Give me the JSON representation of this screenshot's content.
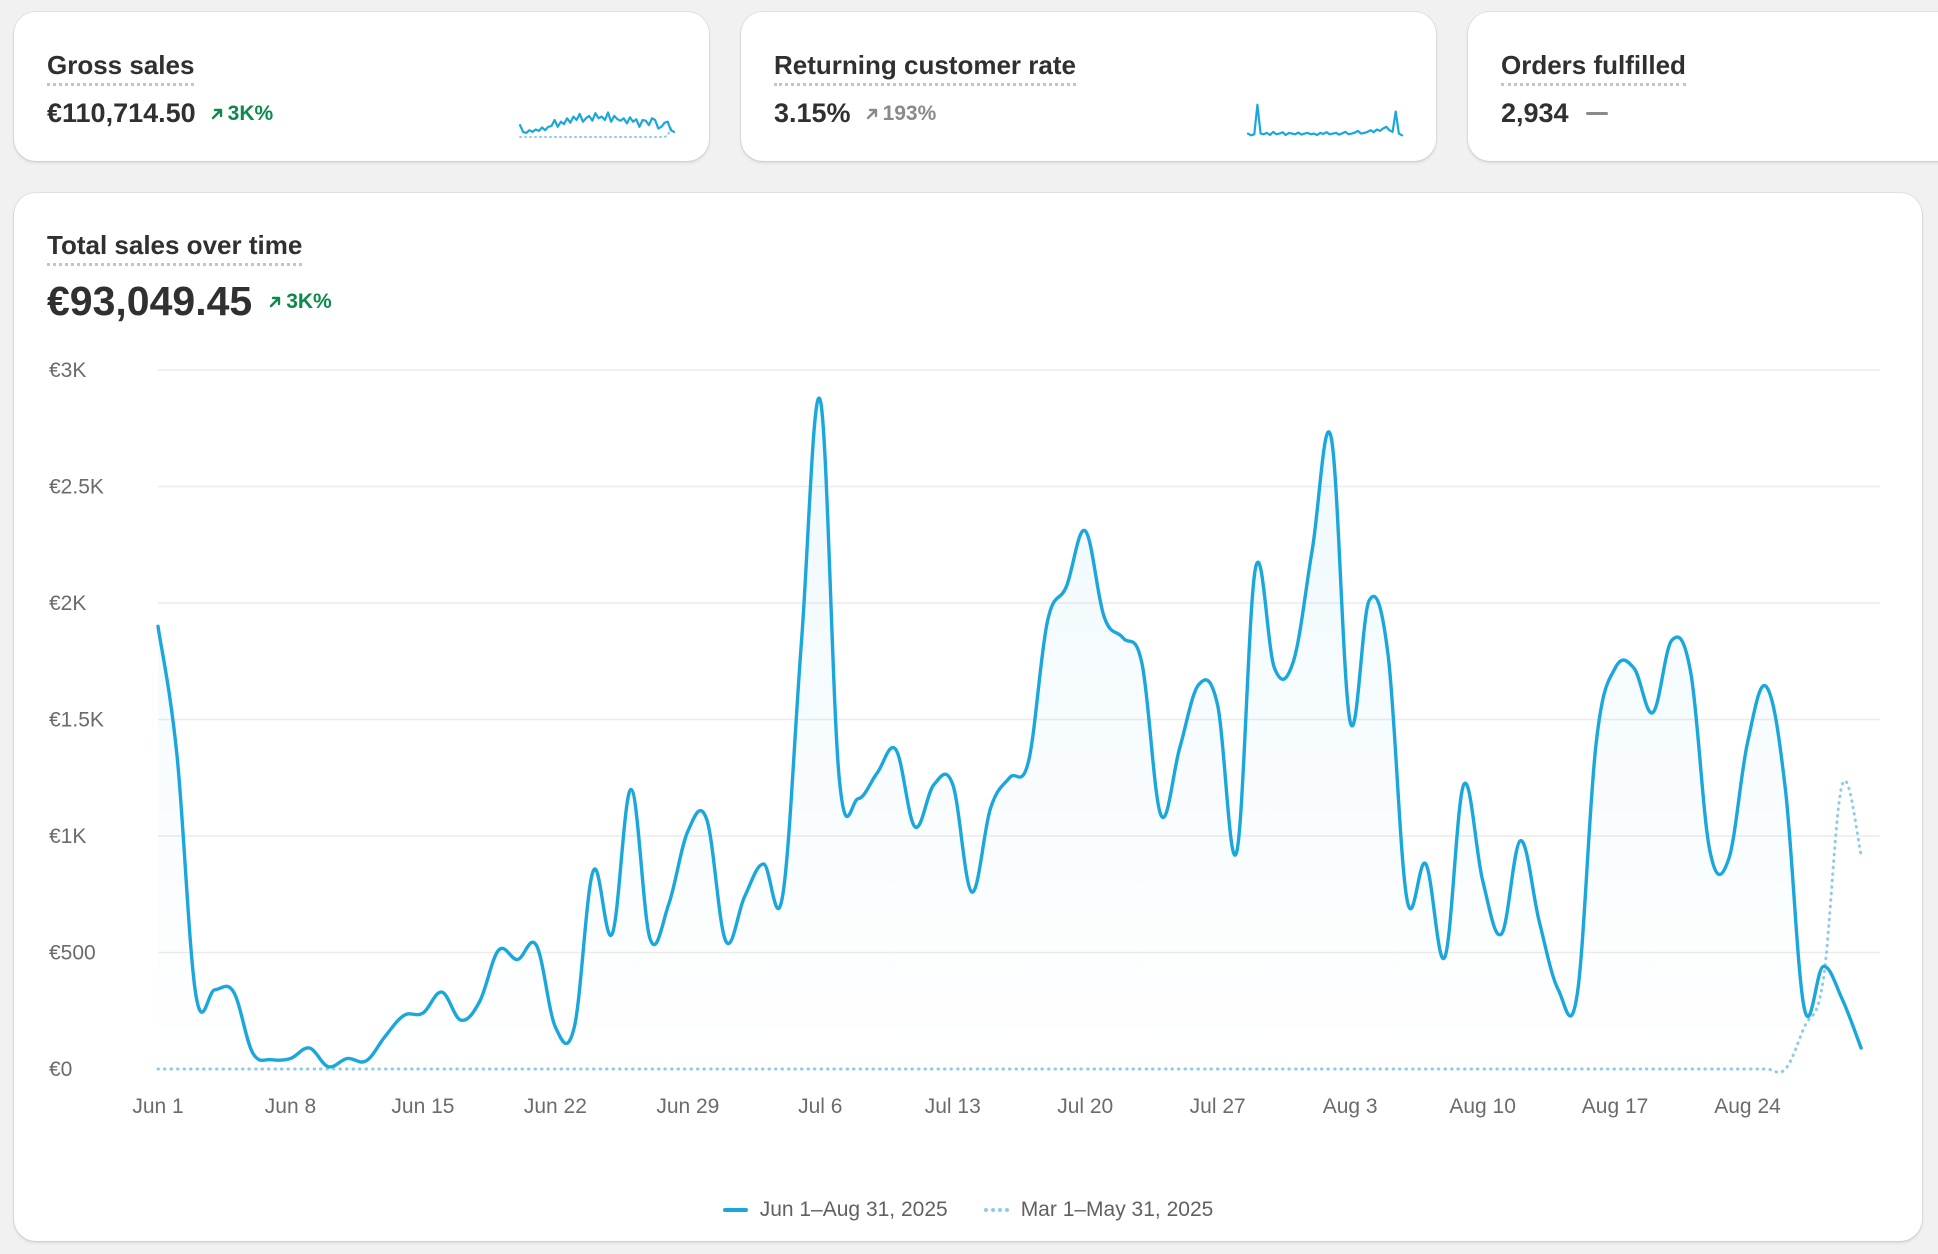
{
  "colors": {
    "accent": "#1ca7dc",
    "comparison": "#8ecbe6",
    "positive": "#0c8a4b",
    "neutral": "#8a8a8a"
  },
  "metrics": [
    {
      "title": "Gross sales",
      "value": "€110,714.50",
      "delta": "3K%",
      "delta_icon": "arrow-up-right-icon",
      "trend": "up",
      "sparkline": {
        "current": [
          0.35,
          0.15,
          0.12,
          0.2,
          0.15,
          0.22,
          0.18,
          0.28,
          0.2,
          0.3,
          0.32,
          0.5,
          0.3,
          0.45,
          0.38,
          0.55,
          0.42,
          0.6,
          0.5,
          0.68,
          0.45,
          0.55,
          0.62,
          0.48,
          0.7,
          0.55,
          0.6,
          0.5,
          0.72,
          0.45,
          0.62,
          0.52,
          0.48,
          0.55,
          0.4,
          0.58,
          0.45,
          0.52,
          0.3,
          0.5,
          0.48,
          0.35,
          0.55,
          0.5,
          0.25,
          0.3,
          0.42,
          0.45,
          0.2,
          0.15
        ],
        "comparison": [
          0,
          0,
          0,
          0,
          0,
          0,
          0,
          0,
          0,
          0,
          0,
          0,
          0,
          0,
          0,
          0,
          0,
          0,
          0,
          0,
          0,
          0,
          0,
          0,
          0,
          0,
          0,
          0,
          0,
          0,
          0,
          0,
          0,
          0,
          0,
          0,
          0,
          0,
          0,
          0,
          0,
          0,
          0,
          0,
          0,
          0,
          0,
          0.05,
          0.25,
          0.3
        ]
      }
    },
    {
      "title": "Returning customer rate",
      "value": "3.15%",
      "delta": "193%",
      "delta_icon": "arrow-up-right-icon",
      "trend": "neutral",
      "sparkline": {
        "current": [
          0.1,
          0.05,
          0.08,
          0.95,
          0.1,
          0.08,
          0.12,
          0.06,
          0.15,
          0.08,
          0.1,
          0.14,
          0.06,
          0.12,
          0.1,
          0.08,
          0.13,
          0.07,
          0.1,
          0.12,
          0.08,
          0.1,
          0.06,
          0.12,
          0.09,
          0.14,
          0.08,
          0.1,
          0.12,
          0.07,
          0.11,
          0.15,
          0.08,
          0.1,
          0.13,
          0.18,
          0.1,
          0.12,
          0.15,
          0.2,
          0.14,
          0.22,
          0.18,
          0.25,
          0.3,
          0.2,
          0.15,
          0.75,
          0.1,
          0.05
        ],
        "comparison": []
      }
    },
    {
      "title": "Orders fulfilled",
      "value": "2,934",
      "delta": "",
      "trend": "flat"
    }
  ],
  "main_card": {
    "title": "Total sales over time",
    "value": "€93,049.45",
    "delta": "3K%",
    "delta_icon": "arrow-up-right-icon"
  },
  "chart_data": {
    "type": "line",
    "title": "Total sales over time",
    "ylim": [
      0,
      3000
    ],
    "y_ticks": [
      {
        "value": 0,
        "label": "€0"
      },
      {
        "value": 500,
        "label": "€500"
      },
      {
        "value": 1000,
        "label": "€1K"
      },
      {
        "value": 1500,
        "label": "€1.5K"
      },
      {
        "value": 2000,
        "label": "€2K"
      },
      {
        "value": 2500,
        "label": "€2.5K"
      },
      {
        "value": 3000,
        "label": "€3K"
      }
    ],
    "x_ticks": [
      {
        "day": 0,
        "label": "Jun 1"
      },
      {
        "day": 7,
        "label": "Jun 8"
      },
      {
        "day": 14,
        "label": "Jun 15"
      },
      {
        "day": 21,
        "label": "Jun 22"
      },
      {
        "day": 28,
        "label": "Jun 29"
      },
      {
        "day": 35,
        "label": "Jul 6"
      },
      {
        "day": 42,
        "label": "Jul 13"
      },
      {
        "day": 49,
        "label": "Jul 20"
      },
      {
        "day": 56,
        "label": "Jul 27"
      },
      {
        "day": 63,
        "label": "Aug 3"
      },
      {
        "day": 70,
        "label": "Aug 10"
      },
      {
        "day": 77,
        "label": "Aug 17"
      },
      {
        "day": 84,
        "label": "Aug 24"
      }
    ],
    "x_domain": [
      0,
      91
    ],
    "grid": true,
    "legend_position": "bottom-center",
    "series": [
      {
        "name": "Jun 1–Aug 31, 2025",
        "style": "solid",
        "values": [
          1900,
          1350,
          320,
          340,
          330,
          70,
          40,
          45,
          90,
          10,
          45,
          35,
          140,
          230,
          240,
          330,
          210,
          290,
          510,
          470,
          530,
          180,
          180,
          850,
          580,
          1200,
          560,
          710,
          1020,
          1070,
          550,
          740,
          880,
          740,
          1830,
          2870,
          1250,
          1160,
          1270,
          1370,
          1040,
          1220,
          1220,
          760,
          1120,
          1250,
          1320,
          1920,
          2070,
          2310,
          1940,
          1850,
          1740,
          1090,
          1380,
          1650,
          1560,
          930,
          2150,
          1720,
          1750,
          2230,
          2710,
          1490,
          2010,
          1780,
          730,
          880,
          480,
          1220,
          810,
          580,
          980,
          630,
          340,
          320,
          1400,
          1720,
          1720,
          1530,
          1840,
          1700,
          940,
          900,
          1400,
          1640,
          1200,
          260,
          440,
          300,
          90
        ],
        "total": "€93,049.45"
      },
      {
        "name": "Mar 1–May 31, 2025",
        "style": "dotted",
        "values": [
          0,
          0,
          0,
          0,
          0,
          0,
          0,
          0,
          0,
          0,
          0,
          0,
          0,
          0,
          0,
          0,
          0,
          0,
          0,
          0,
          0,
          0,
          0,
          0,
          0,
          0,
          0,
          0,
          0,
          0,
          0,
          0,
          0,
          0,
          0,
          0,
          0,
          0,
          0,
          0,
          0,
          0,
          0,
          0,
          0,
          0,
          0,
          0,
          0,
          0,
          0,
          0,
          0,
          0,
          0,
          0,
          0,
          0,
          0,
          0,
          0,
          0,
          0,
          0,
          0,
          0,
          0,
          0,
          0,
          0,
          0,
          0,
          0,
          0,
          0,
          0,
          0,
          0,
          0,
          0,
          0,
          0,
          0,
          0,
          0,
          0,
          0,
          180,
          380,
          1220,
          920
        ]
      }
    ]
  }
}
